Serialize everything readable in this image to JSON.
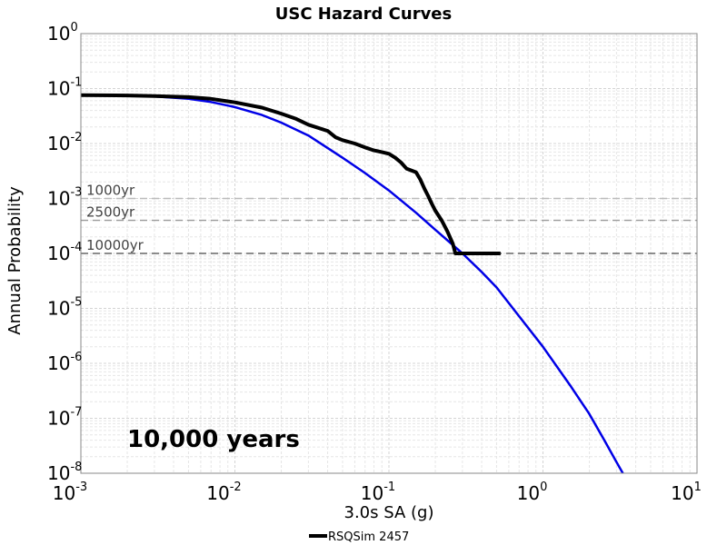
{
  "chart_data": {
    "type": "line",
    "title": "USC Hazard Curves",
    "xlabel": "3.0s SA (g)",
    "ylabel": "Annual Probability",
    "x_scale": "log",
    "y_scale": "log",
    "xlim": [
      0.001,
      10
    ],
    "ylim": [
      1e-08,
      1
    ],
    "x_ticks": [
      {
        "base": "10",
        "exp": "-3",
        "value": 0.001
      },
      {
        "base": "10",
        "exp": "-2",
        "value": 0.01
      },
      {
        "base": "10",
        "exp": "-1",
        "value": 0.1
      },
      {
        "base": "10",
        "exp": "0",
        "value": 1
      },
      {
        "base": "10",
        "exp": "1",
        "value": 10
      }
    ],
    "y_ticks": [
      {
        "base": "10",
        "exp": "0",
        "value": 1
      },
      {
        "base": "10",
        "exp": "-1",
        "value": 0.1
      },
      {
        "base": "10",
        "exp": "-2",
        "value": 0.01
      },
      {
        "base": "10",
        "exp": "-3",
        "value": 0.001
      },
      {
        "base": "10",
        "exp": "-4",
        "value": 0.0001
      },
      {
        "base": "10",
        "exp": "-5",
        "value": 1e-05
      },
      {
        "base": "10",
        "exp": "-6",
        "value": 1e-06
      },
      {
        "base": "10",
        "exp": "-7",
        "value": 1e-07
      },
      {
        "base": "10",
        "exp": "-8",
        "value": 1e-08
      }
    ],
    "grid": true,
    "legend_position": "bottom",
    "series": [
      {
        "name": "RSQSim 2457",
        "color": "#000000",
        "x": [
          0.001,
          0.002,
          0.003,
          0.005,
          0.007,
          0.01,
          0.015,
          0.02,
          0.025,
          0.03,
          0.04,
          0.045,
          0.05,
          0.06,
          0.07,
          0.08,
          0.09,
          0.1,
          0.11,
          0.12,
          0.13,
          0.15,
          0.16,
          0.17,
          0.18,
          0.19,
          0.2,
          0.22,
          0.24,
          0.26,
          0.27,
          0.3,
          0.35,
          0.4,
          0.45,
          0.5,
          0.53
        ],
        "y": [
          0.076,
          0.075,
          0.073,
          0.07,
          0.065,
          0.056,
          0.045,
          0.035,
          0.028,
          0.022,
          0.017,
          0.013,
          0.0115,
          0.01,
          0.0085,
          0.0075,
          0.007,
          0.0065,
          0.0055,
          0.0045,
          0.0035,
          0.003,
          0.0022,
          0.0015,
          0.0011,
          0.0008,
          0.0006,
          0.0004,
          0.00025,
          0.00015,
          0.0001,
          0.0001,
          0.0001,
          0.0001,
          0.0001,
          0.0001,
          0.0001
        ]
      },
      {
        "name": "",
        "color": "#0000e6",
        "x": [
          0.001,
          0.002,
          0.003,
          0.005,
          0.007,
          0.01,
          0.015,
          0.02,
          0.03,
          0.05,
          0.07,
          0.1,
          0.15,
          0.2,
          0.3,
          0.4,
          0.5,
          0.7,
          1.0,
          1.5,
          2.0,
          2.5,
          3.0,
          3.3
        ],
        "y": [
          0.075,
          0.074,
          0.072,
          0.065,
          0.057,
          0.046,
          0.033,
          0.024,
          0.014,
          0.0055,
          0.0029,
          0.0014,
          0.00055,
          0.00027,
          0.0001,
          4.6e-05,
          2.4e-05,
          7.2e-06,
          2e-06,
          4e-07,
          1.2e-07,
          4e-08,
          1.6e-08,
          1e-08
        ]
      }
    ],
    "reference_lines": [
      {
        "label": "1000yr",
        "y": 0.001
      },
      {
        "label": "2500yr",
        "y": 0.0004
      },
      {
        "label": "10000yr",
        "y": 0.0001
      }
    ],
    "annotation": "10,000 years"
  }
}
